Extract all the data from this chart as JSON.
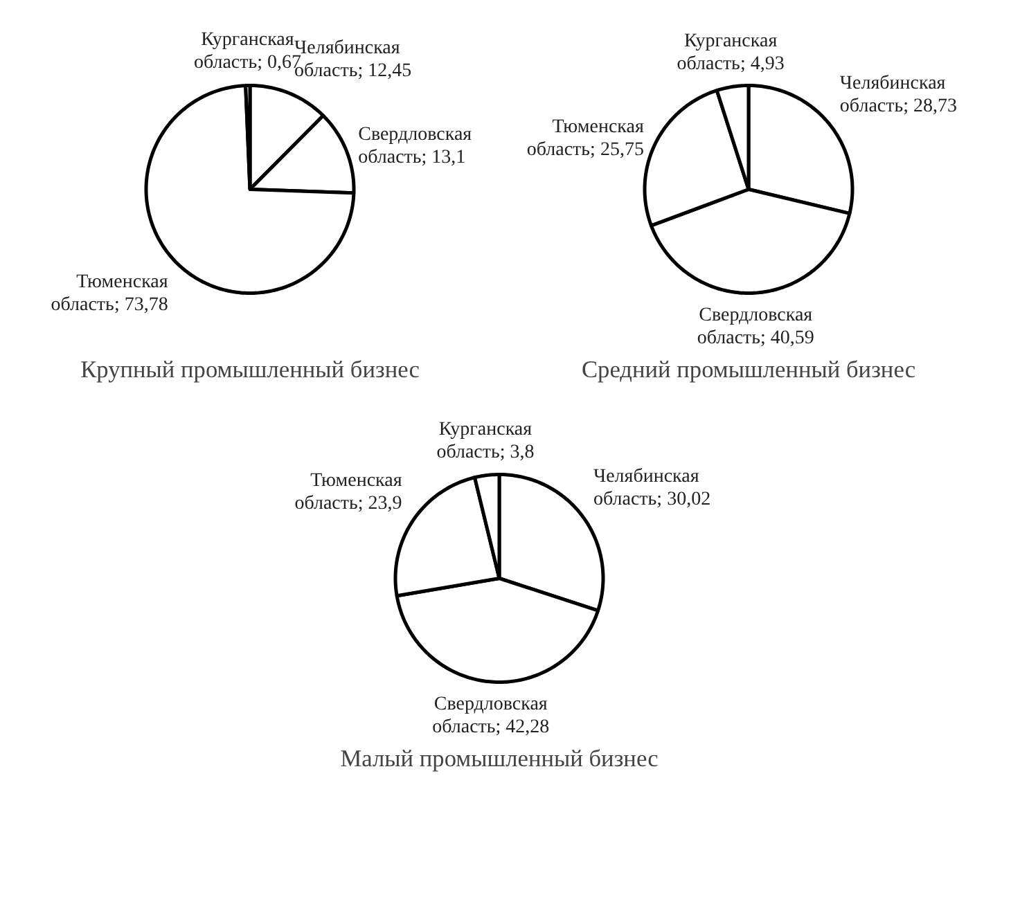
{
  "chart_data": [
    {
      "type": "pie",
      "title": "Крупный промышленный бизнес",
      "categories": [
        "Челябинская область",
        "Свердловская область",
        "Тюменская область",
        "Курганская область"
      ],
      "values": [
        12.45,
        13.1,
        73.78,
        0.67
      ],
      "value_labels": [
        "12,45",
        "13,1",
        "73,78",
        "0,67"
      ],
      "colors": [
        "#ffffff",
        "#ffffff",
        "#ffffff",
        "#ffffff"
      ]
    },
    {
      "type": "pie",
      "title": "Средний промышленный бизнес",
      "categories": [
        "Челябинская область",
        "Свердловская область",
        "Тюменская область",
        "Курганская область"
      ],
      "values": [
        28.73,
        40.59,
        25.75,
        4.93
      ],
      "value_labels": [
        "28,73",
        "40,59",
        "25,75",
        "4,93"
      ],
      "colors": [
        "#ffffff",
        "#ffffff",
        "#ffffff",
        "#ffffff"
      ]
    },
    {
      "type": "pie",
      "title": "Малый промышленный бизнес",
      "categories": [
        "Челябинская область",
        "Свердловская область",
        "Тюменская область",
        "Курганская область"
      ],
      "values": [
        30.02,
        42.28,
        23.9,
        3.8
      ],
      "value_labels": [
        "30,02",
        "42,28",
        "23,9",
        "3,8"
      ],
      "colors": [
        "#ffffff",
        "#ffffff",
        "#ffffff",
        "#ffffff"
      ]
    }
  ]
}
